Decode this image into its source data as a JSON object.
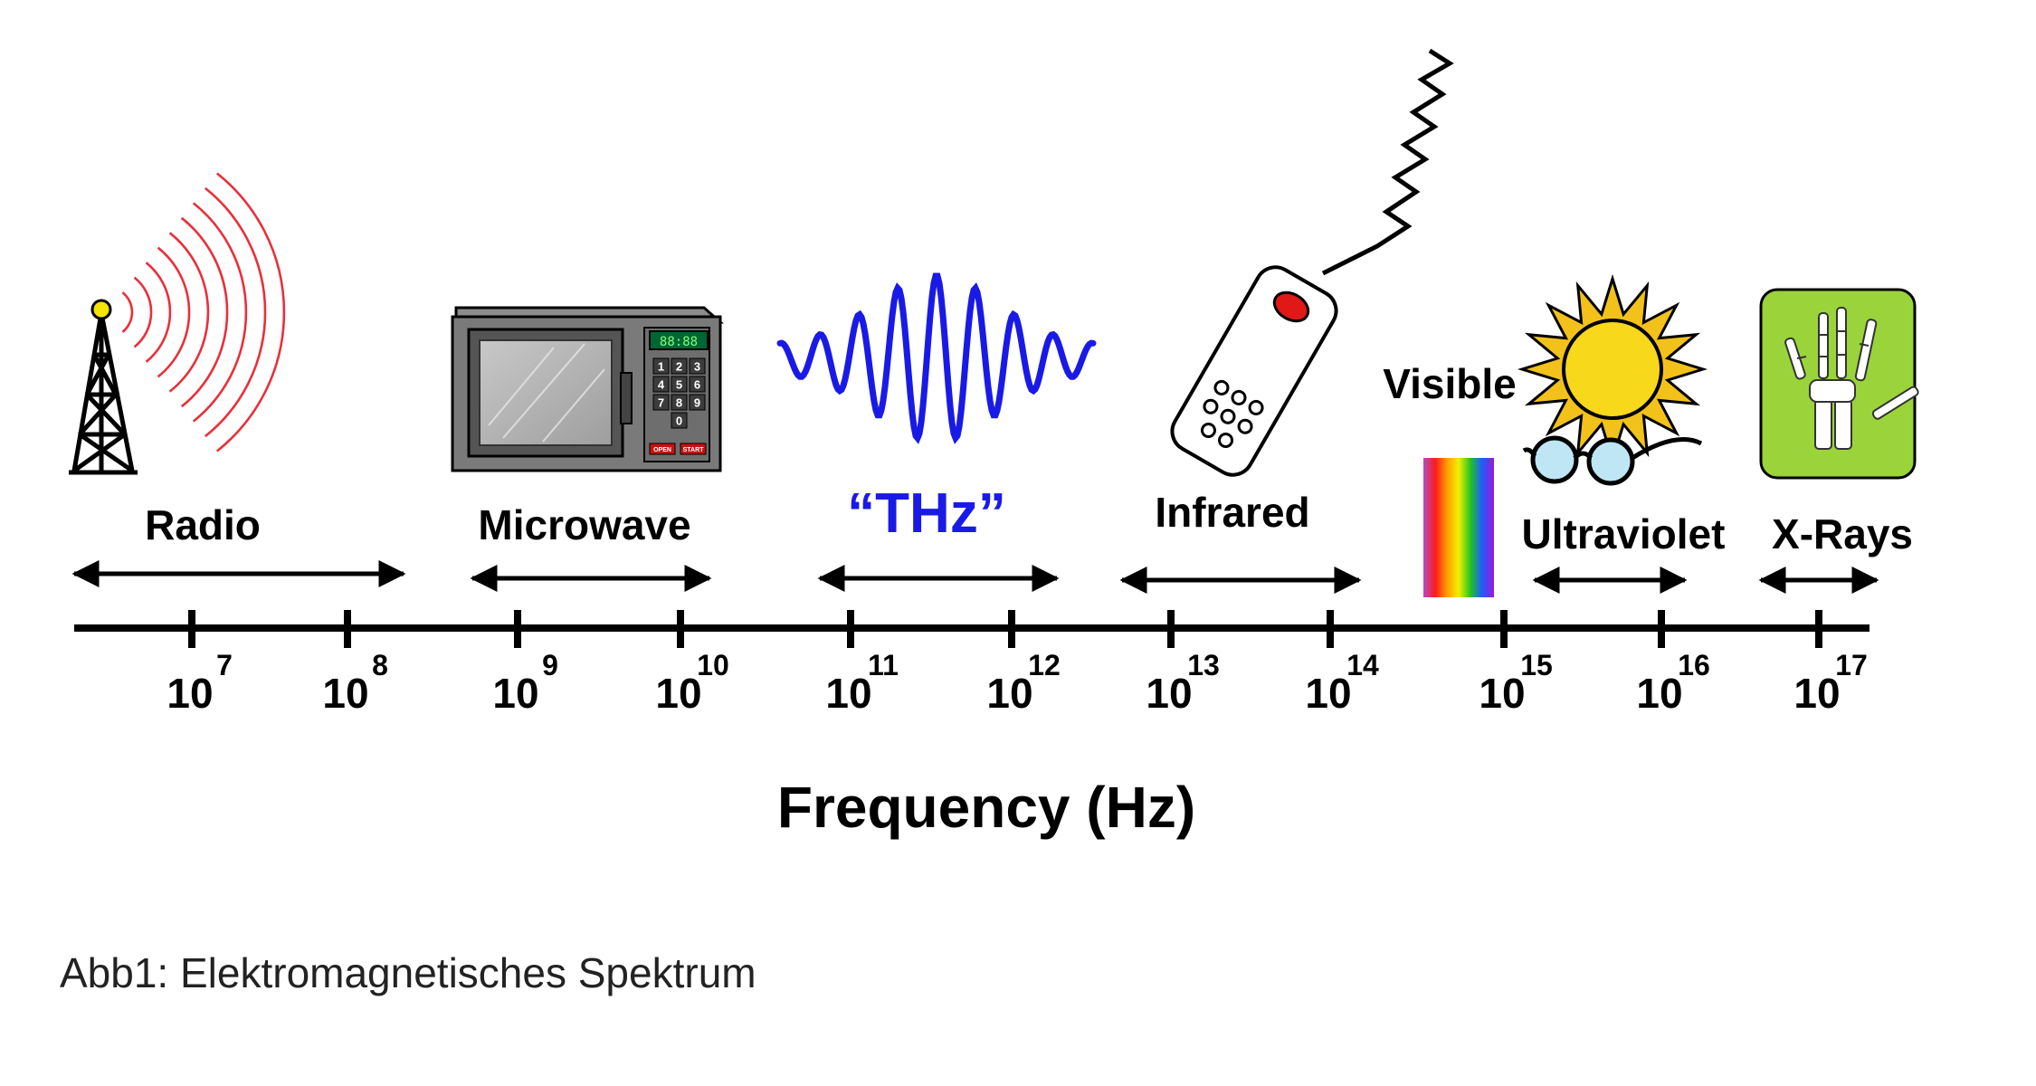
{
  "spectrum": {
    "bands": [
      {
        "id": "radio",
        "label": "Radio"
      },
      {
        "id": "microwave",
        "label": "Microwave"
      },
      {
        "id": "thz",
        "label": "“THz”"
      },
      {
        "id": "infrared",
        "label": "Infrared"
      },
      {
        "id": "visible",
        "label": "Visible"
      },
      {
        "id": "ultraviolet",
        "label": "Ultraviolet"
      },
      {
        "id": "xrays",
        "label": "X-Rays"
      }
    ],
    "ticks": [
      {
        "base": "10",
        "exp": "7"
      },
      {
        "base": "10",
        "exp": "8"
      },
      {
        "base": "10",
        "exp": "9"
      },
      {
        "base": "10",
        "exp": "10"
      },
      {
        "base": "10",
        "exp": "11"
      },
      {
        "base": "10",
        "exp": "12"
      },
      {
        "base": "10",
        "exp": "13"
      },
      {
        "base": "10",
        "exp": "14"
      },
      {
        "base": "10",
        "exp": "15"
      },
      {
        "base": "10",
        "exp": "16"
      },
      {
        "base": "10",
        "exp": "17"
      }
    ],
    "axis_title": "Frequency (Hz)",
    "microwave_display": "88:88",
    "microwave_keys": [
      "1",
      "2",
      "3",
      "4",
      "5",
      "6",
      "7",
      "8",
      "9",
      "0"
    ],
    "microwave_buttons": [
      "OPEN",
      "START"
    ],
    "colors": {
      "radio_waves": "#e8303a",
      "thz_wave": "#1a1ae6",
      "thz_label": "#1a1ae6",
      "sun": "#f2c21b",
      "xray_bg": "#9ad43a"
    }
  },
  "caption": "Abb1: Elektromagnetisches Spektrum"
}
